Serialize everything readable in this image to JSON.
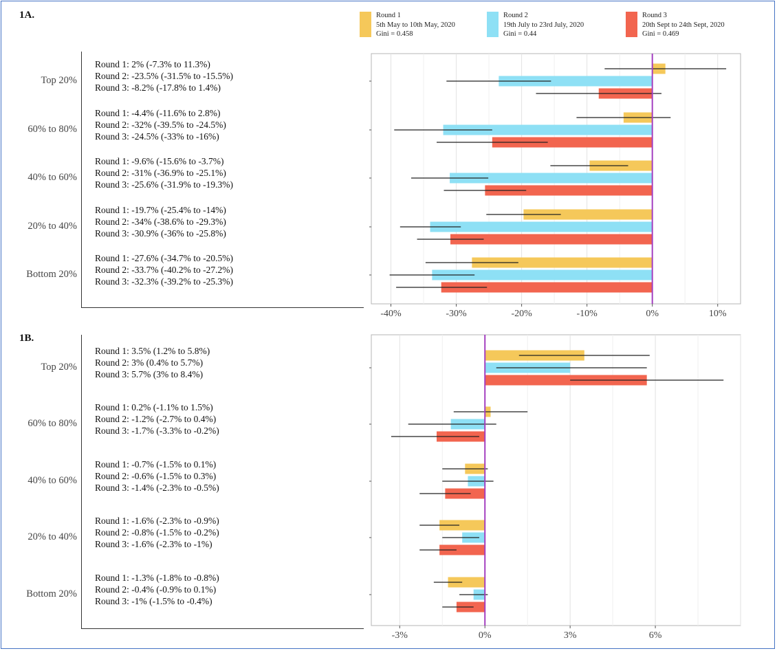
{
  "colors": {
    "round1": "#f5c85a",
    "round2": "#8ee0f5",
    "round3": "#f2654f",
    "zero_line": "#a43fc0",
    "frame": "#4472c4"
  },
  "legend": [
    {
      "name": "Round 1",
      "dates": "5th May to 10th May, 2020",
      "gini": "Gini = 0.458"
    },
    {
      "name": "Round 2",
      "dates": "19th July to 23rd July, 2020",
      "gini": "Gini = 0.44"
    },
    {
      "name": "Round 3",
      "dates": "20th Sept to 24th Sept, 2020",
      "gini": "Gini = 0.469"
    }
  ],
  "chart_data": [
    {
      "type": "bar",
      "panel": "1A.",
      "orientation": "horizontal",
      "categories": [
        "Top 20%",
        "60% to 80%",
        "40% to 60%",
        "20% to 40%",
        "Bottom 20%"
      ],
      "xlim": [
        -43,
        13.5
      ],
      "x_ticks": [
        -40,
        -30,
        -20,
        -10,
        0,
        10
      ],
      "x_tick_labels": [
        "-40%",
        "-30%",
        "-20%",
        "-10%",
        "0%",
        "10%"
      ],
      "grid": true,
      "series": [
        {
          "name": "Round 1",
          "values": [
            2,
            -4.4,
            -9.6,
            -19.7,
            -27.6
          ],
          "ci_low": [
            -7.3,
            -11.6,
            -15.6,
            -25.4,
            -34.7
          ],
          "ci_high": [
            11.3,
            2.8,
            -3.7,
            -14,
            -20.5
          ]
        },
        {
          "name": "Round 2",
          "values": [
            -23.5,
            -32,
            -31,
            -34,
            -33.7
          ],
          "ci_low": [
            -31.5,
            -39.5,
            -36.9,
            -38.6,
            -40.2
          ],
          "ci_high": [
            -15.5,
            -24.5,
            -25.1,
            -29.3,
            -27.2
          ]
        },
        {
          "name": "Round 3",
          "values": [
            -8.2,
            -24.5,
            -25.6,
            -30.9,
            -32.3
          ],
          "ci_low": [
            -17.8,
            -33,
            -31.9,
            -36,
            -39.2
          ],
          "ci_high": [
            1.4,
            -16,
            -19.3,
            -25.8,
            -25.3
          ]
        }
      ],
      "row_labels": [
        [
          "Round 1: 2% (-7.3% to 11.3%)",
          "Round 2: -23.5% (-31.5% to -15.5%)",
          "Round 3: -8.2% (-17.8% to 1.4%)"
        ],
        [
          "Round 1: -4.4% (-11.6% to 2.8%)",
          "Round 2: -32% (-39.5% to -24.5%)",
          "Round 3: -24.5% (-33% to -16%)"
        ],
        [
          "Round 1: -9.6% (-15.6% to -3.7%)",
          "Round 2: -31% (-36.9% to -25.1%)",
          "Round 3: -25.6% (-31.9% to -19.3%)"
        ],
        [
          "Round 1: -19.7% (-25.4% to -14%)",
          "Round 2: -34% (-38.6% to -29.3%)",
          "Round 3: -30.9% (-36% to -25.8%)"
        ],
        [
          "Round 1: -27.6% (-34.7% to -20.5%)",
          "Round 2: -33.7% (-40.2% to -27.2%)",
          "Round 3: -32.3% (-39.2% to -25.3%)"
        ]
      ]
    },
    {
      "type": "bar",
      "panel": "1B.",
      "orientation": "horizontal",
      "categories": [
        "Top 20%",
        "60% to 80%",
        "40% to 60%",
        "20% to 40%",
        "Bottom 20%"
      ],
      "xlim": [
        -4,
        9
      ],
      "x_ticks": [
        -3,
        0,
        3,
        6
      ],
      "x_tick_labels": [
        "-3%",
        "0%",
        "3%",
        "6%"
      ],
      "grid": true,
      "series": [
        {
          "name": "Round 1",
          "values": [
            3.5,
            0.2,
            -0.7,
            -1.6,
            -1.3
          ],
          "ci_low": [
            1.2,
            -1.1,
            -1.5,
            -2.3,
            -1.8
          ],
          "ci_high": [
            5.8,
            1.5,
            0.1,
            -0.9,
            -0.8
          ]
        },
        {
          "name": "Round 2",
          "values": [
            3,
            -1.2,
            -0.6,
            -0.8,
            -0.4
          ],
          "ci_low": [
            0.4,
            -2.7,
            -1.5,
            -1.5,
            -0.9
          ],
          "ci_high": [
            5.7,
            0.4,
            0.3,
            -0.2,
            0.1
          ]
        },
        {
          "name": "Round 3",
          "values": [
            5.7,
            -1.7,
            -1.4,
            -1.6,
            -1
          ],
          "ci_low": [
            3,
            -3.3,
            -2.3,
            -2.3,
            -1.5
          ],
          "ci_high": [
            8.4,
            -0.2,
            -0.5,
            -1,
            -0.4
          ]
        }
      ],
      "row_labels": [
        [
          "Round 1: 3.5% (1.2% to 5.8%)",
          "Round 2: 3% (0.4% to 5.7%)",
          "Round 3: 5.7% (3% to 8.4%)"
        ],
        [
          "Round 1: 0.2% (-1.1% to 1.5%)",
          "Round 2: -1.2% (-2.7% to 0.4%)",
          "Round 3: -1.7% (-3.3% to -0.2%)"
        ],
        [
          "Round 1: -0.7% (-1.5% to 0.1%)",
          "Round 2: -0.6% (-1.5% to 0.3%)",
          "Round 3: -1.4% (-2.3% to -0.5%)"
        ],
        [
          "Round 1: -1.6% (-2.3% to -0.9%)",
          "Round 2: -0.8% (-1.5% to -0.2%)",
          "Round 3: -1.6% (-2.3% to -1%)"
        ],
        [
          "Round 1: -1.3% (-1.8% to -0.8%)",
          "Round 2: -0.4% (-0.9% to 0.1%)",
          "Round 3: -1% (-1.5% to -0.4%)"
        ]
      ]
    }
  ]
}
